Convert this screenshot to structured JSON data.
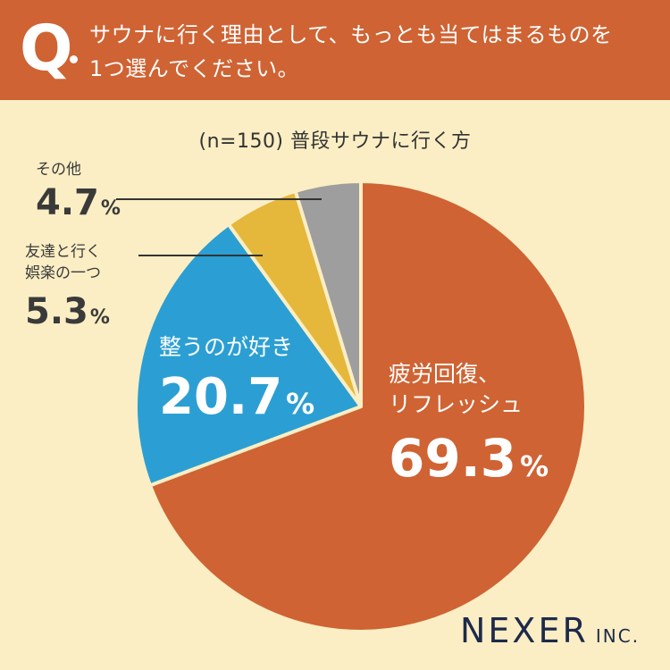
{
  "question": {
    "mark": "Q",
    "line1": "サウナに行く理由として、もっとも当てはまるものを",
    "line2": "1つ選んでください。"
  },
  "chart_data": {
    "type": "pie",
    "title": "(n=150) 普段サウナに行く方",
    "slices": [
      {
        "label": "疲労回復、リフレッシュ",
        "label_lines": [
          "疲労回復、",
          "リフレッシュ"
        ],
        "value": 69.3,
        "color": "#cf6333"
      },
      {
        "label": "整うのが好き",
        "label_lines": [
          "整うのが好き"
        ],
        "value": 20.7,
        "color": "#2b9fd3"
      },
      {
        "label": "友達と行く娯楽の一つ",
        "label_lines": [
          "友達と行く",
          "娯楽の一つ"
        ],
        "value": 5.3,
        "color": "#e5b73a"
      },
      {
        "label": "その他",
        "label_lines": [
          "その他"
        ],
        "value": 4.7,
        "color": "#9e9e9e"
      }
    ],
    "value_suffix": "%"
  },
  "brand": {
    "main": "NEXER",
    "suffix": "INC."
  }
}
